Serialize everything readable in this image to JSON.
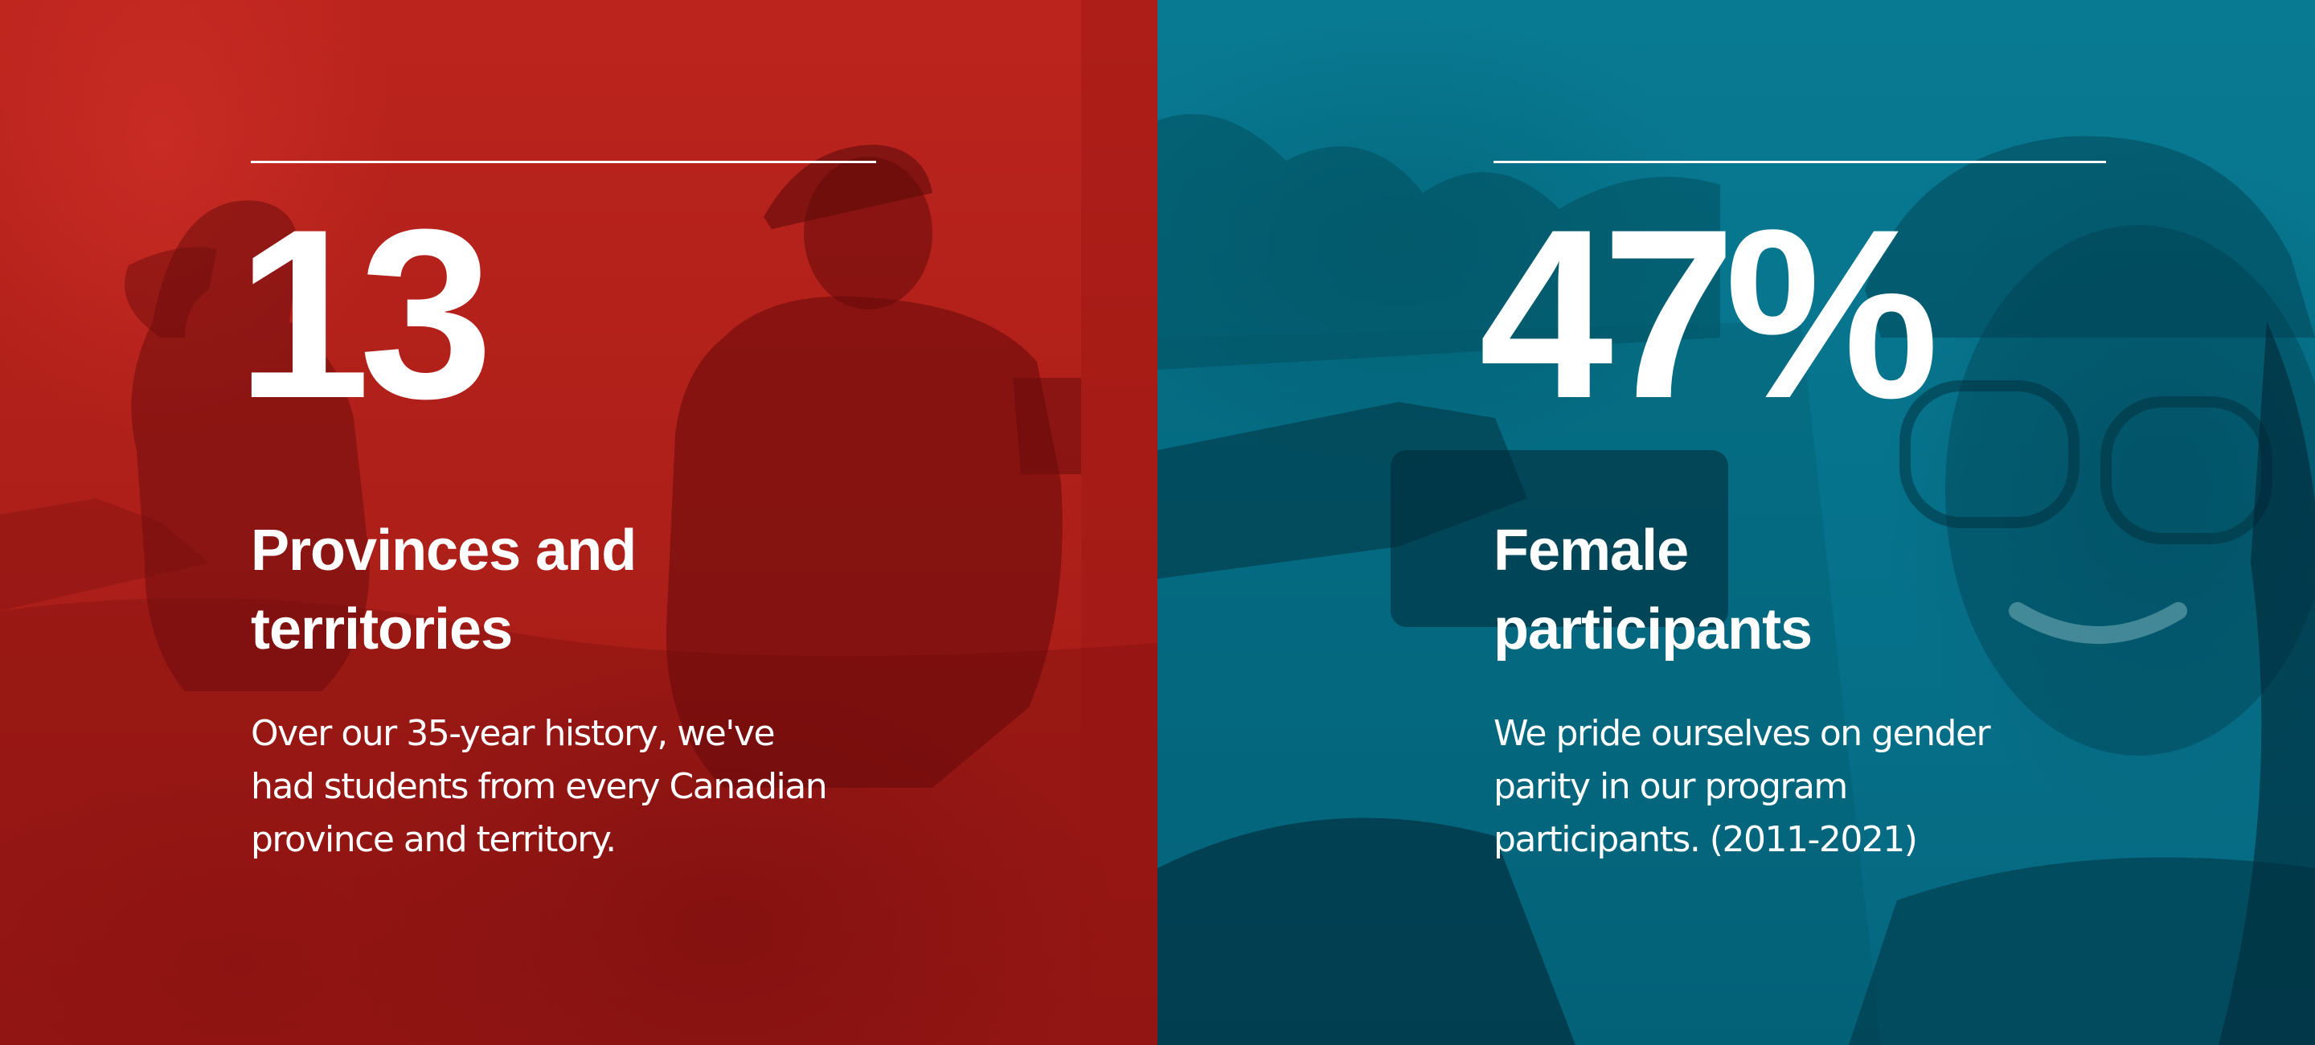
{
  "stats": [
    {
      "number": "13",
      "heading": [
        "Provinces and",
        "territories"
      ],
      "description": [
        "Over our 35-year history, we've",
        "had students from every Canadian",
        "province and territory."
      ],
      "color": "#b4201a"
    },
    {
      "number": "47%",
      "heading": [
        "Female",
        "participants"
      ],
      "description": [
        "We pride ourselves on gender",
        "parity in our program",
        "participants. (2011-2021)"
      ],
      "color": "#0a7891"
    }
  ],
  "colors": {
    "text": "#ffffff",
    "red_panel": "#b4201a",
    "teal_panel": "#0a7891"
  }
}
